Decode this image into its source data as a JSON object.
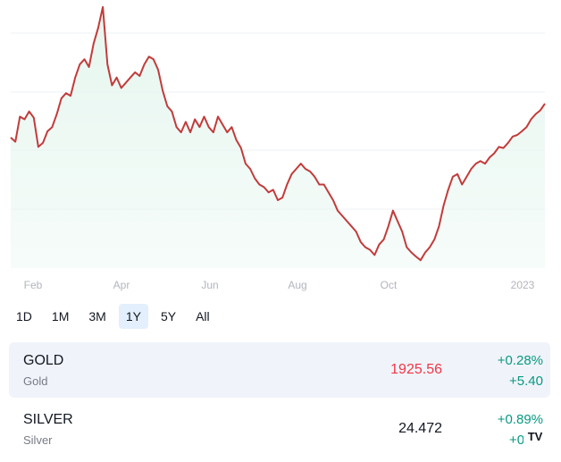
{
  "chart_data": {
    "type": "area",
    "x_ticks": [
      "Feb",
      "Apr",
      "Jun",
      "Aug",
      "Oct",
      "2023"
    ],
    "y_series": [
      1860,
      1852,
      1900,
      1895,
      1910,
      1898,
      1842,
      1850,
      1872,
      1880,
      1905,
      1935,
      1945,
      1940,
      1975,
      2000,
      2010,
      1995,
      2040,
      2070,
      2110,
      2000,
      1960,
      1975,
      1955,
      1965,
      1975,
      1985,
      1978,
      2000,
      2015,
      2010,
      1990,
      1950,
      1920,
      1910,
      1880,
      1870,
      1890,
      1870,
      1895,
      1880,
      1900,
      1880,
      1870,
      1900,
      1885,
      1870,
      1880,
      1855,
      1840,
      1810,
      1800,
      1782,
      1770,
      1765,
      1755,
      1760,
      1740,
      1745,
      1770,
      1790,
      1800,
      1810,
      1800,
      1795,
      1785,
      1770,
      1770,
      1755,
      1740,
      1720,
      1710,
      1700,
      1690,
      1680,
      1660,
      1650,
      1645,
      1635,
      1655,
      1665,
      1690,
      1720,
      1700,
      1680,
      1650,
      1640,
      1632,
      1625,
      1640,
      1650,
      1665,
      1690,
      1730,
      1760,
      1785,
      1790,
      1770,
      1785,
      1800,
      1810,
      1815,
      1810,
      1822,
      1830,
      1842,
      1840,
      1850,
      1862,
      1865,
      1872,
      1880,
      1895,
      1905,
      1912,
      1925
    ],
    "ylim": [
      1610,
      2120
    ]
  },
  "range_buttons": [
    "1D",
    "1M",
    "3M",
    "1Y",
    "5Y",
    "All"
  ],
  "active_range": "1Y",
  "symbols": [
    {
      "name": "GOLD",
      "desc": "Gold",
      "price": "1925.56",
      "pct": "+0.28%",
      "chg": "+5.40",
      "price_color": "#f23645"
    },
    {
      "name": "SILVER",
      "desc": "Silver",
      "price": "24.472",
      "pct": "+0.89%",
      "chg": "+0.21",
      "price_color": "#131722"
    }
  ],
  "colors": {
    "line": "#c23b3b",
    "area_top": "#e6f6ef",
    "grid": "#eef0f3",
    "up": "#089981"
  },
  "logo_icon": "tv-logo-icon",
  "logo_text": "TV"
}
